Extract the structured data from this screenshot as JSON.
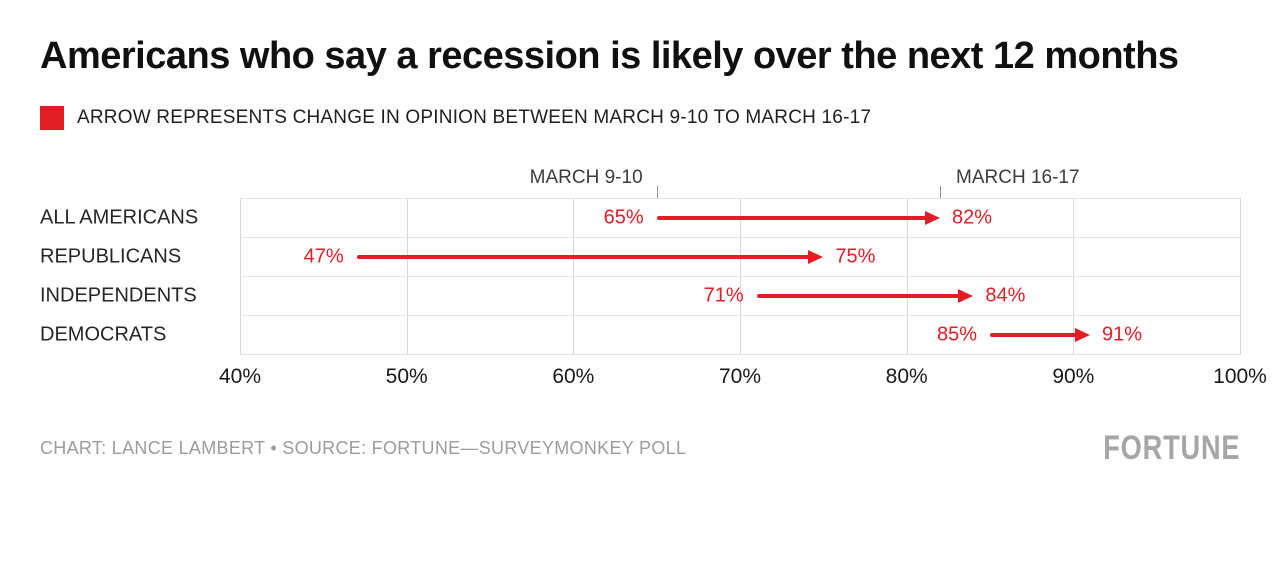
{
  "page": {
    "title": "Americans who say a recession is likely over the next 12 months",
    "legend_label": "ARROW REPRESENTS CHANGE IN OPINION BETWEEN MARCH 9-10 TO MARCH 16-17",
    "credit": "CHART: LANCE LAMBERT • SOURCE: FORTUNE—SURVEYMONKEY POLL",
    "brand": "FORTUNE"
  },
  "colors": {
    "accent": "#e21d25",
    "grid": "#d9d9d9",
    "row_line": "#e4e4e4",
    "muted_text": "#9c9c9c"
  },
  "chart_data": {
    "type": "scatter",
    "subtype": "arrow-change (dumbbell) plot, horizontal",
    "title": "Americans who say a recession is likely over the next 12 months",
    "categories": [
      "ALL AMERICANS",
      "REPUBLICANS",
      "INDEPENDENTS",
      "DEMOCRATS"
    ],
    "series": [
      {
        "name": "MARCH 9-10",
        "values": [
          65,
          47,
          71,
          85
        ]
      },
      {
        "name": "MARCH 16-17",
        "values": [
          82,
          75,
          84,
          91
        ]
      }
    ],
    "value_suffix": "%",
    "xlim": [
      40,
      100
    ],
    "x_ticks": [
      40,
      50,
      60,
      70,
      80,
      90,
      100
    ],
    "x_tick_labels": [
      "40%",
      "50%",
      "60%",
      "70%",
      "80%",
      "90%",
      "100%"
    ],
    "grid": "vertical",
    "legend_position": "top",
    "arrow_color": "#e21d25"
  }
}
